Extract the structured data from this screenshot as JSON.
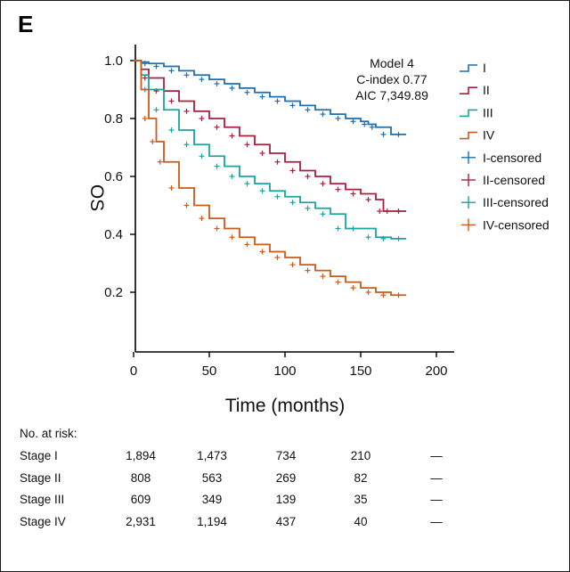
{
  "panel_letter": "E",
  "chart_data": {
    "type": "line",
    "subtype": "kaplan-meier",
    "xlabel": "Time (months)",
    "ylabel": "OS",
    "xlim": [
      0,
      210
    ],
    "ylim": [
      0.08,
      1.06
    ],
    "xticks": [
      0,
      50,
      100,
      150,
      200
    ],
    "yticks": [
      0.2,
      0.4,
      0.6,
      0.8,
      1.0
    ],
    "ytick_labels": [
      "0.2",
      "0.4",
      "0.6",
      "0.8",
      "1.0"
    ],
    "grid": false,
    "annotation": [
      "Model 4",
      "C-index 0.77",
      "AIC 7,349.89"
    ],
    "legend_position": "top-right",
    "legend": [
      {
        "label": "I",
        "kind": "step",
        "color": "#1f6fae"
      },
      {
        "label": "II",
        "kind": "step",
        "color": "#a8203e"
      },
      {
        "label": "III",
        "kind": "step",
        "color": "#1aa3a0"
      },
      {
        "label": "IV",
        "kind": "step",
        "color": "#cc5a18"
      },
      {
        "label": "I-censored",
        "kind": "plus",
        "color": "#1f6fae"
      },
      {
        "label": "II-censored",
        "kind": "plus",
        "color": "#a8203e"
      },
      {
        "label": "III-censored",
        "kind": "plus",
        "color": "#1aa3a0"
      },
      {
        "label": "IV-censored",
        "kind": "plus",
        "color": "#cc5a18"
      }
    ],
    "series": [
      {
        "name": "I",
        "color": "#1f6fae",
        "points": [
          [
            0,
            1.0
          ],
          [
            5,
            0.995
          ],
          [
            10,
            0.99
          ],
          [
            20,
            0.98
          ],
          [
            30,
            0.965
          ],
          [
            40,
            0.95
          ],
          [
            50,
            0.935
          ],
          [
            60,
            0.92
          ],
          [
            70,
            0.905
          ],
          [
            80,
            0.89
          ],
          [
            90,
            0.875
          ],
          [
            100,
            0.86
          ],
          [
            110,
            0.845
          ],
          [
            120,
            0.83
          ],
          [
            130,
            0.815
          ],
          [
            140,
            0.8
          ],
          [
            150,
            0.79
          ],
          [
            155,
            0.78
          ],
          [
            160,
            0.77
          ],
          [
            170,
            0.745
          ],
          [
            180,
            0.745
          ]
        ]
      },
      {
        "name": "II",
        "color": "#a8203e",
        "points": [
          [
            0,
            1.0
          ],
          [
            5,
            0.97
          ],
          [
            10,
            0.94
          ],
          [
            20,
            0.895
          ],
          [
            30,
            0.86
          ],
          [
            40,
            0.825
          ],
          [
            50,
            0.8
          ],
          [
            60,
            0.77
          ],
          [
            70,
            0.74
          ],
          [
            80,
            0.71
          ],
          [
            90,
            0.68
          ],
          [
            100,
            0.65
          ],
          [
            110,
            0.62
          ],
          [
            120,
            0.6
          ],
          [
            130,
            0.575
          ],
          [
            140,
            0.555
          ],
          [
            150,
            0.54
          ],
          [
            160,
            0.52
          ],
          [
            165,
            0.48
          ],
          [
            170,
            0.48
          ],
          [
            180,
            0.48
          ]
        ]
      },
      {
        "name": "III",
        "color": "#1aa3a0",
        "points": [
          [
            0,
            1.0
          ],
          [
            5,
            0.95
          ],
          [
            10,
            0.9
          ],
          [
            20,
            0.83
          ],
          [
            30,
            0.76
          ],
          [
            40,
            0.71
          ],
          [
            50,
            0.67
          ],
          [
            60,
            0.635
          ],
          [
            70,
            0.6
          ],
          [
            80,
            0.575
          ],
          [
            90,
            0.55
          ],
          [
            100,
            0.53
          ],
          [
            110,
            0.51
          ],
          [
            120,
            0.49
          ],
          [
            130,
            0.47
          ],
          [
            140,
            0.42
          ],
          [
            150,
            0.42
          ],
          [
            160,
            0.39
          ],
          [
            170,
            0.385
          ],
          [
            180,
            0.385
          ]
        ]
      },
      {
        "name": "IV",
        "color": "#cc5a18",
        "points": [
          [
            0,
            1.0
          ],
          [
            5,
            0.9
          ],
          [
            10,
            0.8
          ],
          [
            15,
            0.72
          ],
          [
            20,
            0.65
          ],
          [
            30,
            0.56
          ],
          [
            40,
            0.5
          ],
          [
            50,
            0.455
          ],
          [
            60,
            0.42
          ],
          [
            70,
            0.39
          ],
          [
            80,
            0.365
          ],
          [
            90,
            0.34
          ],
          [
            100,
            0.32
          ],
          [
            110,
            0.295
          ],
          [
            120,
            0.275
          ],
          [
            130,
            0.255
          ],
          [
            140,
            0.235
          ],
          [
            150,
            0.215
          ],
          [
            160,
            0.2
          ],
          [
            170,
            0.19
          ],
          [
            180,
            0.19
          ]
        ]
      }
    ]
  },
  "risk_table": {
    "title": "No. at risk:",
    "rows": [
      {
        "label": "Stage I",
        "values": [
          "1,894",
          "1,473",
          "734",
          "210",
          "—"
        ]
      },
      {
        "label": "Stage II",
        "values": [
          "808",
          "563",
          "269",
          "82",
          "—"
        ]
      },
      {
        "label": "Stage III",
        "values": [
          "609",
          "349",
          "139",
          "35",
          "—"
        ]
      },
      {
        "label": "Stage IV",
        "values": [
          "2,931",
          "1,194",
          "437",
          "40",
          "—"
        ]
      }
    ]
  }
}
